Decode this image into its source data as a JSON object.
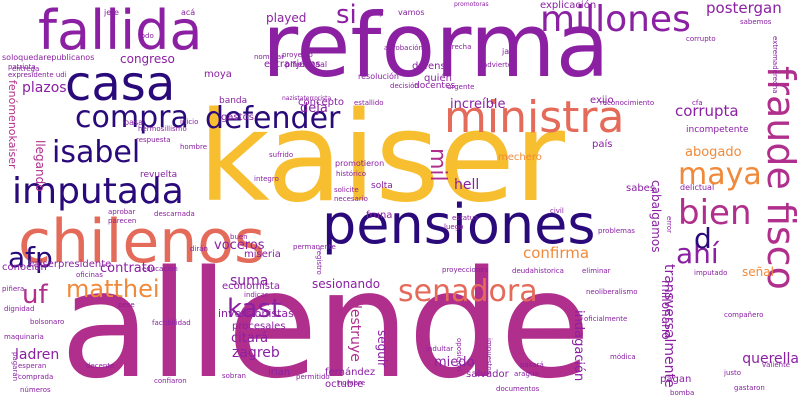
{
  "palette": {
    "purple": "#6a0f9a",
    "magenta": "#b02f8c",
    "gold": "#f7be2f",
    "orange": "#f08a3a",
    "salmon": "#e46a5a",
    "navy": "#2a0a7a",
    "violet": "#8b20a3"
  },
  "words": [
    {
      "text": "allende",
      "color": "magenta"
    },
    {
      "text": "kaiser",
      "color": "gold"
    },
    {
      "text": "reforma",
      "color": "violet"
    },
    {
      "text": "pensiones",
      "color": "navy"
    },
    {
      "text": "chilenos",
      "color": "salmon"
    },
    {
      "text": "fallida",
      "color": "violet"
    },
    {
      "text": "casa",
      "color": "navy"
    },
    {
      "text": "imputada",
      "color": "navy"
    },
    {
      "text": "ministra",
      "color": "salmon"
    },
    {
      "text": "millones",
      "color": "violet"
    },
    {
      "text": "fraude fisco",
      "color": "magenta"
    },
    {
      "text": "defender",
      "color": "navy"
    },
    {
      "text": "compra",
      "color": "navy"
    },
    {
      "text": "isabel",
      "color": "navy"
    },
    {
      "text": "senadora",
      "color": "salmon"
    },
    {
      "text": "matthei",
      "color": "orange"
    },
    {
      "text": "afp",
      "color": "navy"
    },
    {
      "text": "kast",
      "color": "violet"
    },
    {
      "text": "maya",
      "color": "orange"
    },
    {
      "text": "bien",
      "color": "magenta"
    },
    {
      "text": "ahí",
      "color": "violet"
    },
    {
      "text": "uf",
      "color": "magenta"
    },
    {
      "text": "si",
      "color": "violet"
    },
    {
      "text": "d",
      "color": "navy"
    },
    {
      "text": "mil",
      "color": "magenta"
    },
    {
      "text": "suma",
      "color": "violet"
    },
    {
      "text": "plazos",
      "color": "violet"
    },
    {
      "text": "corrupta",
      "color": "violet"
    },
    {
      "text": "postergan",
      "color": "violet"
    },
    {
      "text": "increíble",
      "color": "violet"
    },
    {
      "text": "confirma",
      "color": "orange"
    },
    {
      "text": "voceros",
      "color": "violet"
    },
    {
      "text": "contrato",
      "color": "violet"
    },
    {
      "text": "ladren",
      "color": "violet"
    },
    {
      "text": "zagreb",
      "color": "violet"
    },
    {
      "text": "citará",
      "color": "violet"
    },
    {
      "text": "querella",
      "color": "violet"
    },
    {
      "text": "abogado",
      "color": "orange"
    },
    {
      "text": "hell",
      "color": "violet"
    },
    {
      "text": "miedo",
      "color": "violet"
    },
    {
      "text": "seguir",
      "color": "violet"
    },
    {
      "text": "destruye",
      "color": "magenta"
    },
    {
      "text": "transversalmente",
      "color": "violet"
    },
    {
      "text": "indagación",
      "color": "violet"
    },
    {
      "text": "millonario",
      "color": "violet"
    },
    {
      "text": "cabalgamos",
      "color": "violet"
    },
    {
      "text": "sesionando",
      "color": "violet"
    },
    {
      "text": "deja",
      "color": "violet"
    },
    {
      "text": "played",
      "color": "violet"
    },
    {
      "text": "llegando",
      "color": "magenta"
    },
    {
      "text": "fenómenokaiser",
      "color": "magenta"
    },
    {
      "text": "congreso",
      "color": "violet"
    },
    {
      "text": "señal",
      "color": "orange"
    },
    {
      "text": "inversionistas",
      "color": "violet"
    },
    {
      "text": "economista",
      "color": "violet"
    },
    {
      "text": "procesales",
      "color": "violet"
    },
    {
      "text": "fernández",
      "color": "violet"
    },
    {
      "text": "octubre",
      "color": "violet"
    },
    {
      "text": "irían",
      "color": "violet"
    },
    {
      "text": "concepto",
      "color": "violet"
    },
    {
      "text": "kaiserpresidente",
      "color": "violet"
    },
    {
      "text": "conocían",
      "color": "violet"
    },
    {
      "text": "revuelta",
      "color": "violet"
    },
    {
      "text": "extranjeros",
      "color": "violet"
    },
    {
      "text": "defensa",
      "color": "violet"
    },
    {
      "text": "quién",
      "color": "violet"
    },
    {
      "text": "país",
      "color": "violet"
    },
    {
      "text": "exijo",
      "color": "violet"
    },
    {
      "text": "docentes",
      "color": "violet"
    },
    {
      "text": "moya",
      "color": "violet"
    },
    {
      "text": "gastos",
      "color": "violet"
    },
    {
      "text": "banda",
      "color": "violet"
    },
    {
      "text": "miseria",
      "color": "violet"
    },
    {
      "text": "salvador",
      "color": "violet"
    },
    {
      "text": "pagan",
      "color": "violet"
    },
    {
      "text": "fruna",
      "color": "violet"
    },
    {
      "text": "solta",
      "color": "violet"
    },
    {
      "text": "mechero",
      "color": "orange"
    },
    {
      "text": "sabes",
      "color": "violet"
    },
    {
      "text": "incompetente",
      "color": "violet"
    },
    {
      "text": "delictual",
      "color": "violet"
    },
    {
      "text": "explicación",
      "color": "violet"
    },
    {
      "text": "jefe",
      "color": "violet"
    },
    {
      "text": "acá",
      "color": "violet"
    },
    {
      "text": "vamos",
      "color": "violet"
    },
    {
      "text": "ley",
      "color": "violet"
    },
    {
      "text": "todo",
      "color": "violet"
    },
    {
      "text": "soloquedarepublicanos",
      "color": "violet"
    },
    {
      "text": "patriota",
      "color": "violet"
    },
    {
      "text": "expresidente udi",
      "color": "violet"
    },
    {
      "text": "entrega",
      "color": "violet"
    },
    {
      "text": "proyecto",
      "color": "violet"
    },
    {
      "text": "piñeristaal",
      "color": "violet"
    },
    {
      "text": "nombrar",
      "color": "violet"
    },
    {
      "text": "resolución",
      "color": "violet"
    },
    {
      "text": "decisión",
      "color": "violet"
    },
    {
      "text": "estallido",
      "color": "violet"
    },
    {
      "text": "derecha",
      "color": "violet"
    },
    {
      "text": "jair",
      "color": "violet"
    },
    {
      "text": "adviertе",
      "color": "violet"
    },
    {
      "text": "urgente",
      "color": "violet"
    },
    {
      "text": "corrupto",
      "color": "violet"
    },
    {
      "text": "sabemos",
      "color": "violet"
    },
    {
      "text": "extremaderecha",
      "color": "violet"
    },
    {
      "text": "promotoras",
      "color": "violet"
    },
    {
      "text": "aprobación",
      "color": "violet"
    },
    {
      "text": "nazistaterrorista",
      "color": "violet"
    },
    {
      "text": "reconocimiento",
      "color": "violet"
    },
    {
      "text": "cfa",
      "color": "violet"
    },
    {
      "text": "hermosillismo",
      "color": "violet"
    },
    {
      "text": "respuesta",
      "color": "violet"
    },
    {
      "text": "inicio",
      "color": "violet"
    },
    {
      "text": "hombre",
      "color": "violet"
    },
    {
      "text": "sufrido",
      "color": "violet"
    },
    {
      "text": "promotieron",
      "color": "violet"
    },
    {
      "text": "histórico",
      "color": "violet"
    },
    {
      "text": "solicite",
      "color": "violet"
    },
    {
      "text": "necesario",
      "color": "violet"
    },
    {
      "text": "integro",
      "color": "violet"
    },
    {
      "text": "estatua",
      "color": "violet"
    },
    {
      "text": "luego",
      "color": "violet"
    },
    {
      "text": "error",
      "color": "violet"
    },
    {
      "text": "civil",
      "color": "violet"
    },
    {
      "text": "problemas",
      "color": "violet"
    },
    {
      "text": "imputado",
      "color": "violet"
    },
    {
      "text": "compañero",
      "color": "violet"
    },
    {
      "text": "permanente",
      "color": "violet"
    },
    {
      "text": "buen",
      "color": "violet"
    },
    {
      "text": "descarnada",
      "color": "violet"
    },
    {
      "text": "dirán",
      "color": "violet"
    },
    {
      "text": "aprobar",
      "color": "violet"
    },
    {
      "text": "parecen",
      "color": "violet"
    },
    {
      "text": "pese",
      "color": "violet"
    },
    {
      "text": "oficinas",
      "color": "violet"
    },
    {
      "text": "educación",
      "color": "violet"
    },
    {
      "text": "indicar",
      "color": "violet"
    },
    {
      "text": "registro",
      "color": "violet"
    },
    {
      "text": "proyecciones",
      "color": "violet"
    },
    {
      "text": "deudahistorica",
      "color": "violet"
    },
    {
      "text": "eliminar",
      "color": "violet"
    },
    {
      "text": "neoliberalismo",
      "color": "violet"
    },
    {
      "text": "oficialmente",
      "color": "violet"
    },
    {
      "text": "dignidad",
      "color": "violet"
    },
    {
      "text": "bolsonaro",
      "color": "violet"
    },
    {
      "text": "factibilidad",
      "color": "violet"
    },
    {
      "text": "maquinaria",
      "color": "violet"
    },
    {
      "text": "esperan",
      "color": "violet"
    },
    {
      "text": "comprada",
      "color": "violet"
    },
    {
      "text": "números",
      "color": "violet"
    },
    {
      "text": "pagarán",
      "color": "violet"
    },
    {
      "text": "decente",
      "color": "violet"
    },
    {
      "text": "confiaron",
      "color": "violet"
    },
    {
      "text": "sobran",
      "color": "violet"
    },
    {
      "text": "permitido",
      "color": "violet"
    },
    {
      "text": "nombre",
      "color": "violet"
    },
    {
      "text": "documentos",
      "color": "violet"
    },
    {
      "text": "impuestos",
      "color": "violet"
    },
    {
      "text": "oposición",
      "color": "violet"
    },
    {
      "text": "pasará",
      "color": "violet"
    },
    {
      "text": "indultar",
      "color": "violet"
    },
    {
      "text": "aragua",
      "color": "violet"
    },
    {
      "text": "bomba",
      "color": "violet"
    },
    {
      "text": "justo",
      "color": "violet"
    },
    {
      "text": "módica",
      "color": "violet"
    },
    {
      "text": "gastaron",
      "color": "violet"
    },
    {
      "text": "valiente",
      "color": "violet"
    },
    {
      "text": "pasa",
      "color": "violet"
    },
    {
      "text": "piñera",
      "color": "violet"
    }
  ]
}
